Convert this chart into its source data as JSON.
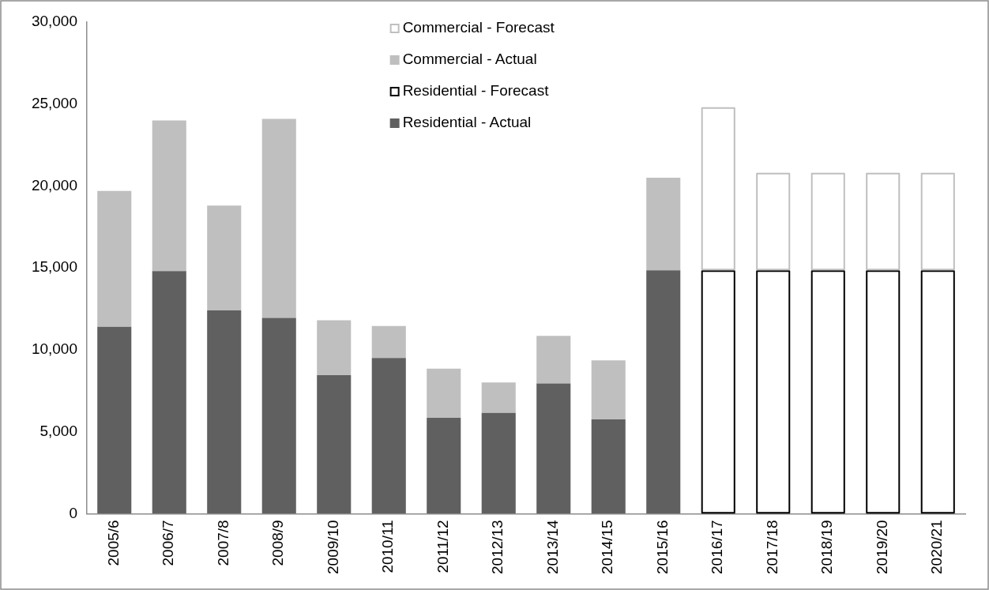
{
  "chart_data": {
    "type": "bar",
    "stacked": true,
    "categories": [
      "2005/6",
      "2006/7",
      "2007/8",
      "2008/9",
      "2009/10",
      "2010/11",
      "2011/12",
      "2012/13",
      "2013/14",
      "2014/15",
      "2015/16",
      "2016/17",
      "2017/18",
      "2018/19",
      "2019/20",
      "2020/21"
    ],
    "series": [
      {
        "name": "Residential - Actual",
        "color": "#606060",
        "values": [
          11400,
          14800,
          12400,
          11950,
          8450,
          9500,
          5850,
          6150,
          7950,
          5750,
          14850,
          null,
          null,
          null,
          null,
          null
        ]
      },
      {
        "name": "Residential - Forecast",
        "color": "#000000",
        "line_style": "solid",
        "values": [
          null,
          null,
          null,
          null,
          null,
          null,
          null,
          null,
          null,
          null,
          null,
          14850,
          14850,
          14850,
          14850,
          14850
        ]
      },
      {
        "name": "Commercial - Actual",
        "color": "#bfbfbf",
        "values": [
          8300,
          9200,
          6400,
          12150,
          3350,
          1950,
          3000,
          1850,
          2900,
          3600,
          5650,
          null,
          null,
          null,
          null,
          null
        ]
      },
      {
        "name": "Commercial - Forecast",
        "color": "#bfbfbf",
        "line_style": "solid",
        "values": [
          null,
          null,
          null,
          null,
          null,
          null,
          null,
          null,
          null,
          null,
          null,
          9950,
          5950,
          5950,
          5950,
          5950
        ]
      }
    ],
    "ylim": [
      0,
      30000
    ],
    "yticks": [
      0,
      {
        "value": 5000,
        "label": "5,000"
      },
      {
        "value": 10000,
        "label": "10,000"
      },
      {
        "value": 15000,
        "label": "15,000"
      },
      {
        "value": 20000,
        "label": "20,000"
      },
      {
        "value": 25000,
        "label": "25,000"
      },
      {
        "value": 30000,
        "label": "30,000"
      }
    ],
    "grid": false,
    "legend": "top"
  }
}
